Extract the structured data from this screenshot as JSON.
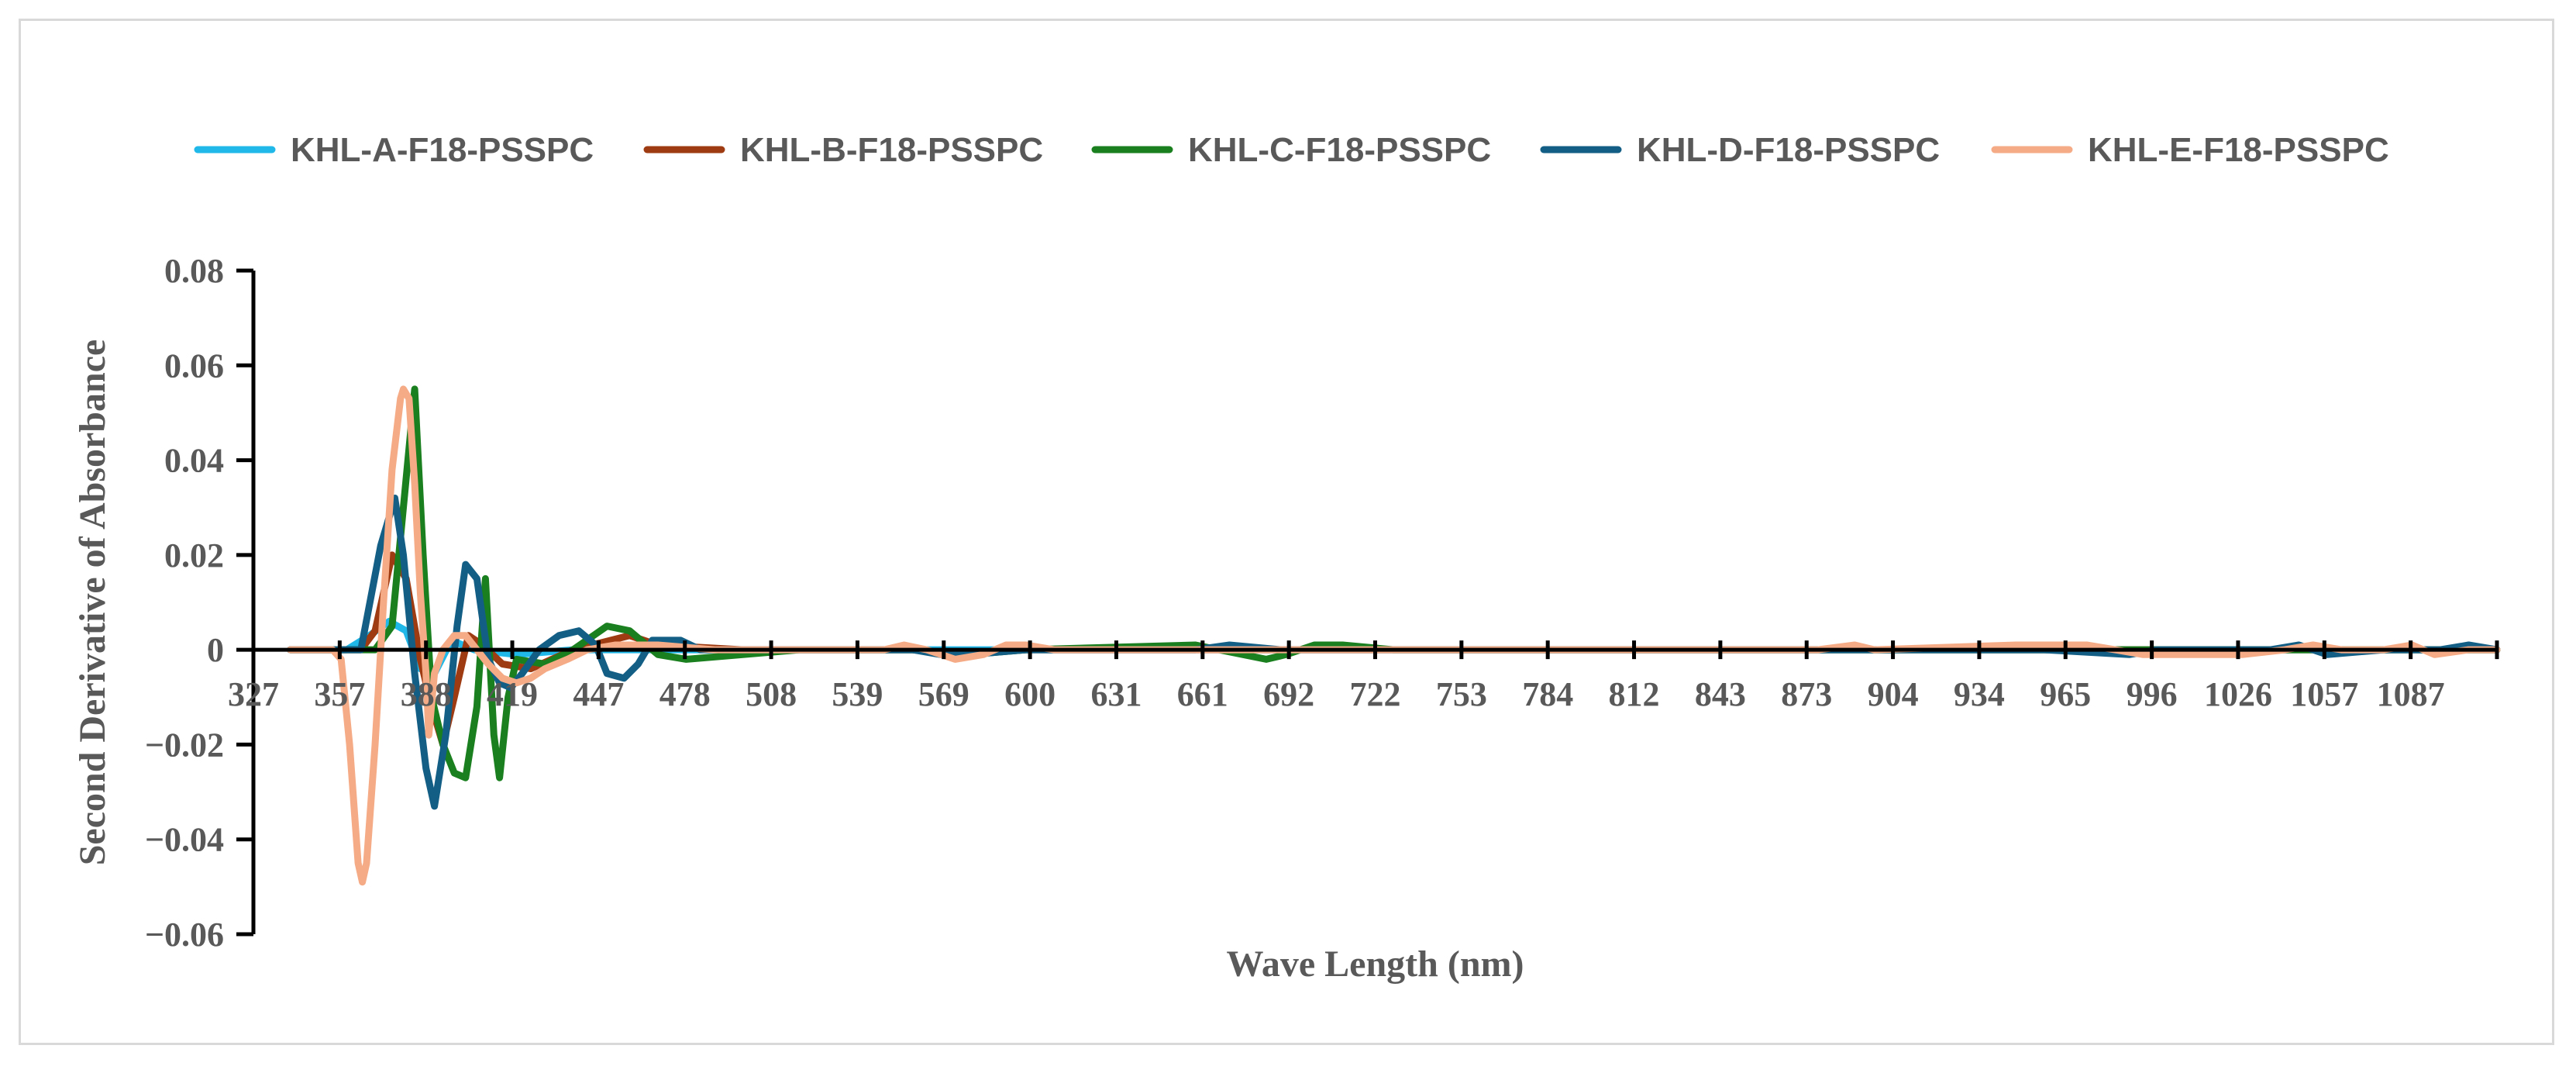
{
  "chart_data": {
    "type": "line",
    "title": "",
    "xlabel": "Wave Length (nm)",
    "ylabel": "Second Derivative of Absorbance",
    "ylim": [
      -0.06,
      0.08
    ],
    "yticks": [
      -0.06,
      -0.04,
      -0.02,
      0,
      0.02,
      0.04,
      0.06,
      0.08
    ],
    "ytick_labels": [
      "−0.06",
      "−0.04",
      "−0.02",
      "0",
      "0.02",
      "0.04",
      "0.06",
      "0.08"
    ],
    "xlim": [
      327,
      1120
    ],
    "xtick_labels": [
      "327",
      "357",
      "388",
      "419",
      "447",
      "478",
      "508",
      "539",
      "569",
      "600",
      "631",
      "661",
      "692",
      "722",
      "753",
      "784",
      "812",
      "843",
      "873",
      "904",
      "934",
      "965",
      "996",
      "1026",
      "1057",
      "1087"
    ],
    "grid": false,
    "legend_position": "top",
    "series": [
      {
        "name": "KHL-A-F18-PSSPC",
        "color": "#1fb8e8",
        "points": [
          [
            340,
            0
          ],
          [
            360,
            0
          ],
          [
            368,
            0.003
          ],
          [
            375,
            0.006
          ],
          [
            381,
            0.004
          ],
          [
            386,
            -0.004
          ],
          [
            391,
            -0.005
          ],
          [
            397,
            0.002
          ],
          [
            405,
            0
          ],
          [
            420,
            -0.001
          ],
          [
            440,
            0
          ],
          [
            480,
            0
          ],
          [
            560,
            0
          ],
          [
            700,
            0
          ],
          [
            900,
            0
          ],
          [
            1100,
            0
          ],
          [
            1120,
            0
          ]
        ]
      },
      {
        "name": "KHL-B-F18-PSSPC",
        "color": "#9e3b12",
        "points": [
          [
            340,
            0
          ],
          [
            365,
            0
          ],
          [
            370,
            0.004
          ],
          [
            376,
            0.02
          ],
          [
            381,
            0.015
          ],
          [
            386,
            -0.002
          ],
          [
            390,
            -0.012
          ],
          [
            394,
            -0.02
          ],
          [
            398,
            -0.01
          ],
          [
            403,
            0.003
          ],
          [
            408,
            0.001
          ],
          [
            415,
            -0.003
          ],
          [
            425,
            -0.004
          ],
          [
            440,
            0
          ],
          [
            460,
            0.003
          ],
          [
            470,
            0.001
          ],
          [
            500,
            0
          ],
          [
            560,
            0
          ],
          [
            575,
            -0.001
          ],
          [
            600,
            0
          ],
          [
            1100,
            0
          ],
          [
            1120,
            0
          ]
        ]
      },
      {
        "name": "KHL-C-F18-PSSPC",
        "color": "#1a7f1e",
        "points": [
          [
            340,
            0
          ],
          [
            370,
            0
          ],
          [
            376,
            0.005
          ],
          [
            380,
            0.03
          ],
          [
            384,
            0.055
          ],
          [
            387,
            0.02
          ],
          [
            390,
            -0.01
          ],
          [
            394,
            -0.02
          ],
          [
            398,
            -0.026
          ],
          [
            402,
            -0.027
          ],
          [
            406,
            -0.012
          ],
          [
            409,
            0.015
          ],
          [
            412,
            -0.018
          ],
          [
            414,
            -0.027
          ],
          [
            417,
            -0.01
          ],
          [
            420,
            -0.002
          ],
          [
            430,
            -0.003
          ],
          [
            440,
            0
          ],
          [
            452,
            0.005
          ],
          [
            460,
            0.004
          ],
          [
            470,
            -0.001
          ],
          [
            480,
            -0.002
          ],
          [
            500,
            -0.001
          ],
          [
            520,
            0
          ],
          [
            560,
            0
          ],
          [
            580,
            -0.001
          ],
          [
            600,
            0
          ],
          [
            660,
            0.001
          ],
          [
            685,
            -0.002
          ],
          [
            692,
            -0.001
          ],
          [
            702,
            0.001
          ],
          [
            712,
            0.001
          ],
          [
            730,
            0
          ],
          [
            900,
            0
          ],
          [
            1100,
            0
          ],
          [
            1120,
            0
          ]
        ]
      },
      {
        "name": "KHL-D-F18-PSSPC",
        "color": "#135e85",
        "points": [
          [
            340,
            0
          ],
          [
            365,
            0
          ],
          [
            372,
            0.022
          ],
          [
            377,
            0.032
          ],
          [
            380,
            0.02
          ],
          [
            384,
            -0.005
          ],
          [
            388,
            -0.025
          ],
          [
            391,
            -0.033
          ],
          [
            395,
            -0.018
          ],
          [
            399,
            0.005
          ],
          [
            402,
            0.018
          ],
          [
            406,
            0.015
          ],
          [
            410,
            -0.002
          ],
          [
            414,
            -0.007
          ],
          [
            418,
            -0.008
          ],
          [
            422,
            -0.005
          ],
          [
            428,
            0
          ],
          [
            435,
            0.003
          ],
          [
            442,
            0.004
          ],
          [
            448,
            0.001
          ],
          [
            452,
            -0.005
          ],
          [
            458,
            -0.006
          ],
          [
            463,
            -0.003
          ],
          [
            468,
            0.002
          ],
          [
            478,
            0.002
          ],
          [
            485,
            0
          ],
          [
            500,
            0
          ],
          [
            520,
            0
          ],
          [
            540,
            0
          ],
          [
            550,
            0
          ],
          [
            560,
            0
          ],
          [
            570,
            -0.001
          ],
          [
            580,
            -0.001
          ],
          [
            600,
            0
          ],
          [
            640,
            0
          ],
          [
            660,
            0
          ],
          [
            672,
            0.001
          ],
          [
            690,
            0
          ],
          [
            760,
            0
          ],
          [
            900,
            0
          ],
          [
            960,
            0
          ],
          [
            990,
            -0.001
          ],
          [
            1000,
            0
          ],
          [
            1040,
            0
          ],
          [
            1050,
            0.001
          ],
          [
            1060,
            -0.001
          ],
          [
            1080,
            0
          ],
          [
            1100,
            0
          ],
          [
            1110,
            0.001
          ],
          [
            1120,
            0
          ]
        ]
      },
      {
        "name": "KHL-E-F18-PSSPC",
        "color": "#f5ab86",
        "points": [
          [
            340,
            0
          ],
          [
            355,
            0
          ],
          [
            358,
            -0.002
          ],
          [
            361,
            -0.02
          ],
          [
            364,
            -0.045
          ],
          [
            365.5,
            -0.049
          ],
          [
            367,
            -0.045
          ],
          [
            370,
            -0.02
          ],
          [
            373,
            0.01
          ],
          [
            376,
            0.038
          ],
          [
            379,
            0.053
          ],
          [
            380,
            0.055
          ],
          [
            382,
            0.053
          ],
          [
            384,
            0.035
          ],
          [
            386,
            0.012
          ],
          [
            388,
            -0.005
          ],
          [
            389,
            -0.018
          ],
          [
            391,
            -0.005
          ],
          [
            394,
            0
          ],
          [
            398,
            0.003
          ],
          [
            402,
            0.003
          ],
          [
            406,
            0
          ],
          [
            410,
            -0.003
          ],
          [
            415,
            -0.006
          ],
          [
            420,
            -0.007
          ],
          [
            425,
            -0.006
          ],
          [
            430,
            -0.004
          ],
          [
            438,
            -0.002
          ],
          [
            445,
            0
          ],
          [
            455,
            0.001
          ],
          [
            470,
            0.001
          ],
          [
            490,
            0
          ],
          [
            520,
            0
          ],
          [
            550,
            0
          ],
          [
            557,
            0.001
          ],
          [
            565,
            0
          ],
          [
            575,
            -0.002
          ],
          [
            585,
            -0.001
          ],
          [
            593,
            0.001
          ],
          [
            600,
            0.001
          ],
          [
            610,
            0
          ],
          [
            700,
            0
          ],
          [
            880,
            0
          ],
          [
            893,
            0.001
          ],
          [
            900,
            0
          ],
          [
            950,
            0.001
          ],
          [
            975,
            0.001
          ],
          [
            985,
            0
          ],
          [
            995,
            -0.001
          ],
          [
            1030,
            -0.001
          ],
          [
            1045,
            0
          ],
          [
            1055,
            0.001
          ],
          [
            1065,
            0
          ],
          [
            1080,
            0
          ],
          [
            1090,
            0.001
          ],
          [
            1098,
            -0.001
          ],
          [
            1110,
            0
          ],
          [
            1120,
            0
          ]
        ]
      }
    ]
  }
}
